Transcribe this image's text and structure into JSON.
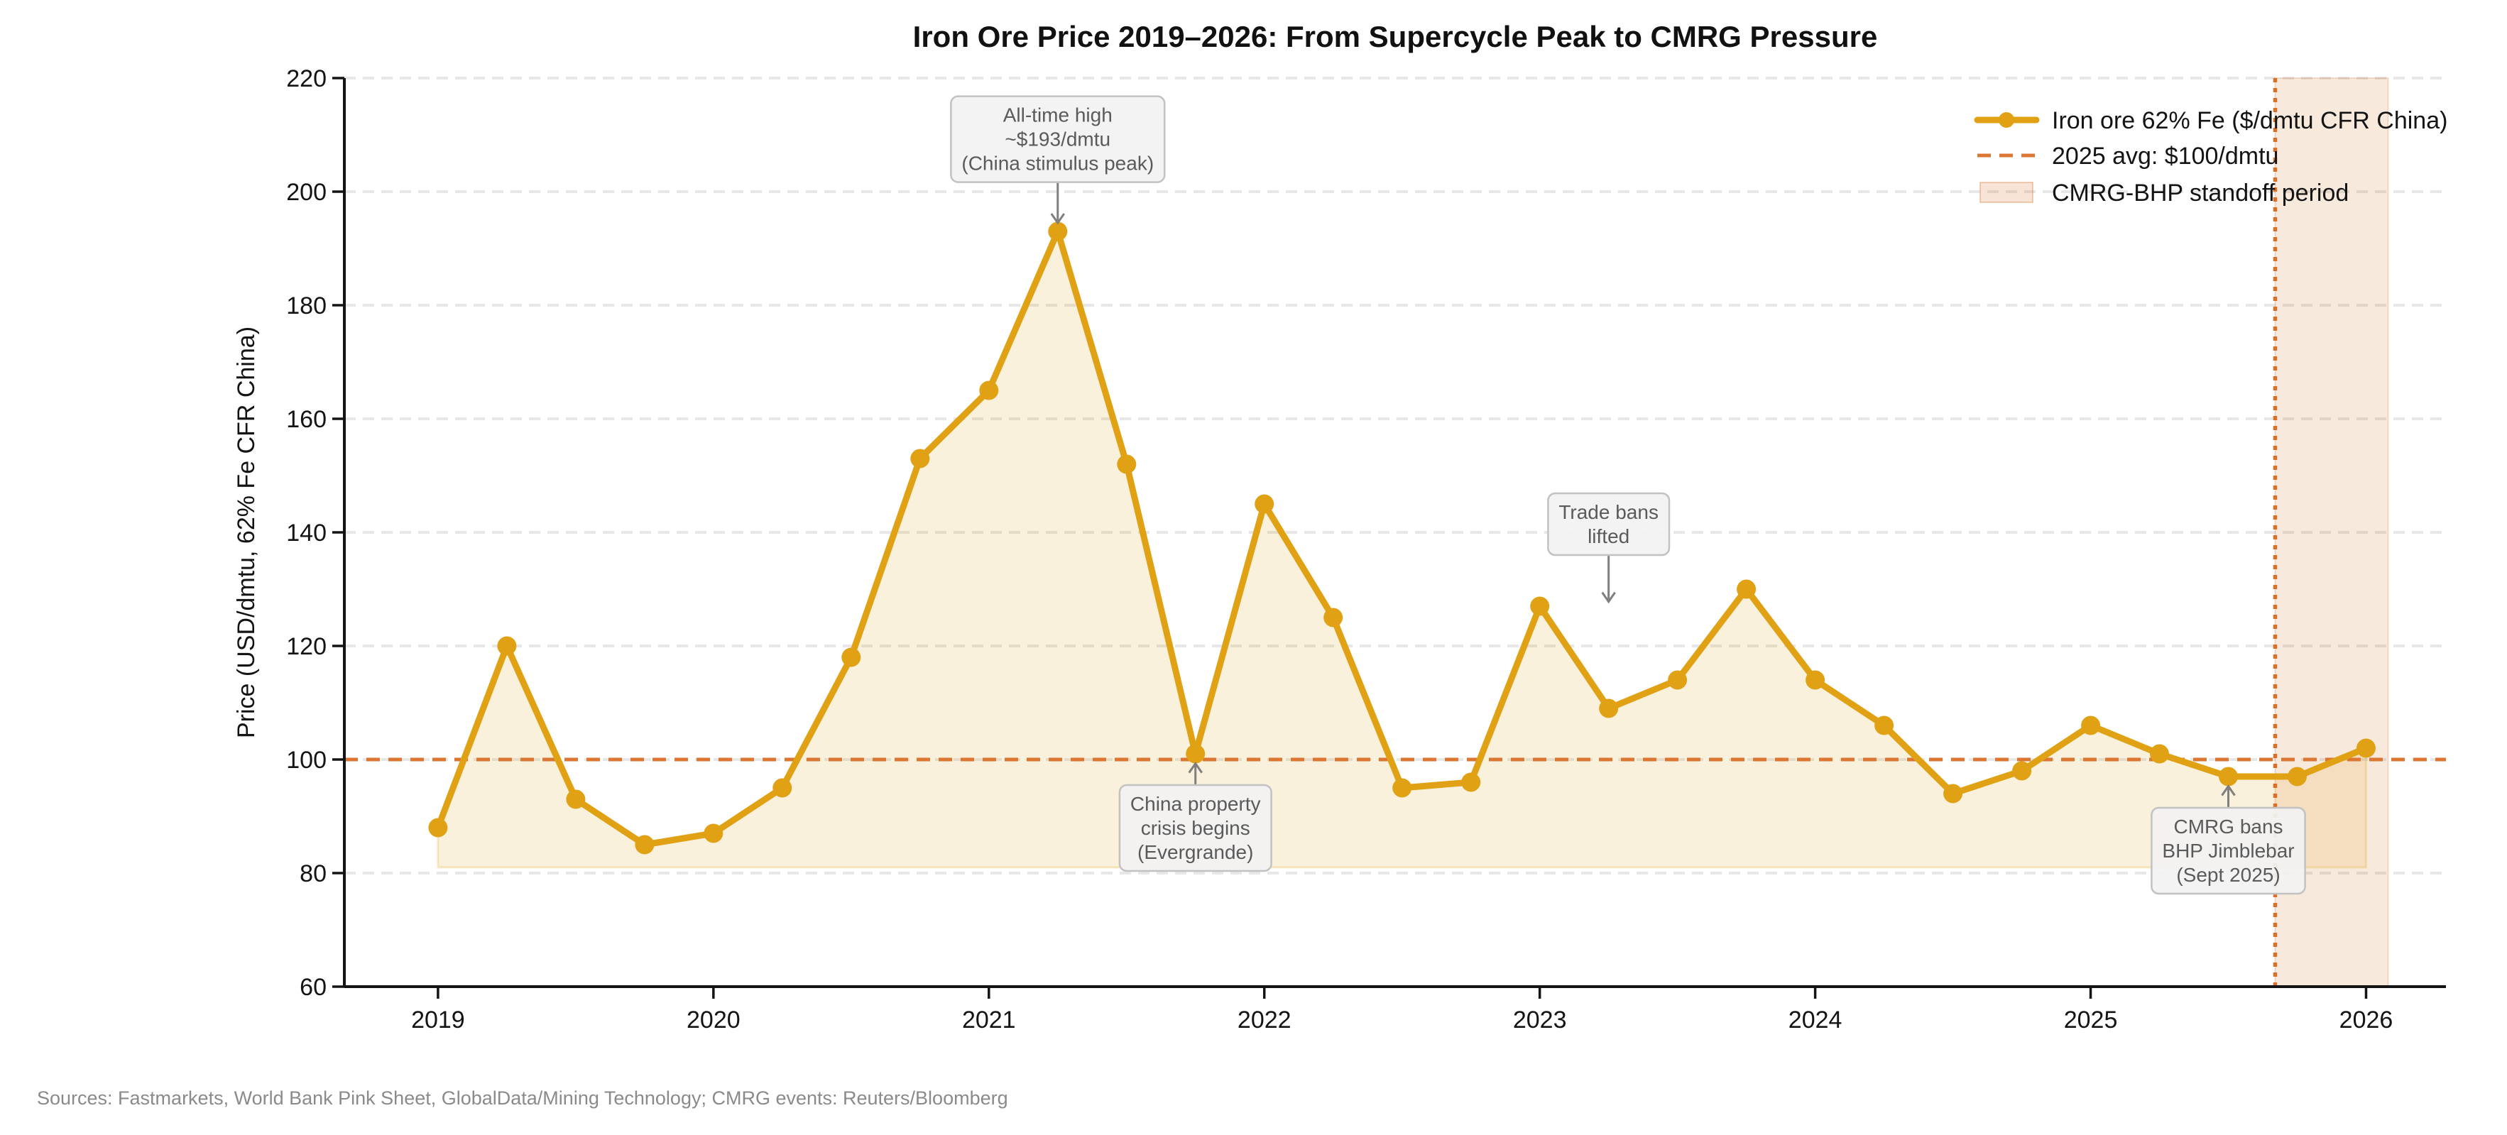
{
  "footer": "Sources: Fastmarkets, World Bank Pink Sheet, GlobalData/Mining Technology; CMRG events: Reuters/Bloomberg",
  "chart_data": {
    "type": "line",
    "title": "Iron Ore Price 2019–2026: From Supercycle Peak to CMRG Pressure",
    "xlabel": "",
    "ylabel": "Price (USD/dmtu, 62% Fe CFR China)",
    "xlim": [
      2018.66,
      2026.29
    ],
    "ylim": [
      60,
      220
    ],
    "xticks": [
      2019,
      2020,
      2021,
      2022,
      2023,
      2024,
      2025,
      2026
    ],
    "yticks": [
      60,
      80,
      100,
      120,
      140,
      160,
      180,
      200,
      220
    ],
    "grid": "horizontal-dashed",
    "x": [
      2019.0,
      2019.25,
      2019.5,
      2019.75,
      2020.0,
      2020.25,
      2020.5,
      2020.75,
      2021.0,
      2021.25,
      2021.5,
      2021.75,
      2022.0,
      2022.25,
      2022.5,
      2022.75,
      2023.0,
      2023.25,
      2023.5,
      2023.75,
      2024.0,
      2024.25,
      2024.5,
      2024.75,
      2025.0,
      2025.25,
      2025.5,
      2025.75,
      2026.0
    ],
    "series": [
      {
        "name": "Iron ore 62% Fe ($/dmtu CFR China)",
        "values": [
          88,
          120,
          93,
          85,
          87,
          95,
          118,
          153,
          165,
          193,
          152,
          101,
          145,
          125,
          95,
          96,
          127,
          109,
          114,
          130,
          114,
          106,
          94,
          98,
          106,
          101,
          97,
          97,
          102
        ]
      }
    ],
    "area_baseline": 81,
    "avg_line": {
      "value": 100,
      "label": "2025 avg: $100/dmtu"
    },
    "band": {
      "x0": 2025.67,
      "x1": 2026.08,
      "label": "CMRG-BHP standoff period"
    },
    "legend": {
      "position": "upper right",
      "entries": [
        {
          "type": "line-marker",
          "label": "Iron ore 62% Fe ($/dmtu CFR China)"
        },
        {
          "type": "dashed-line",
          "label": "2025 avg: $100/dmtu"
        },
        {
          "type": "patch",
          "label": "CMRG-BHP standoff period"
        }
      ]
    },
    "annotations": [
      {
        "lines": [
          "All-time high",
          "~$193/dmtu",
          "(China stimulus peak)"
        ],
        "target_x": 2021.25,
        "target_y": 194.5,
        "box_x": 2021.25,
        "box_y": 209.3
      },
      {
        "lines": [
          "China property",
          "crisis begins",
          "(Evergrande)"
        ],
        "target_x": 2021.75,
        "target_y": 99.3,
        "box_x": 2021.75,
        "box_y": 88.0
      },
      {
        "lines": [
          "Trade bans",
          "lifted"
        ],
        "target_x": 2023.25,
        "target_y": 127.8,
        "box_x": 2023.25,
        "box_y": 141.5
      },
      {
        "lines": [
          "CMRG bans",
          "BHP Jimblebar",
          "(Sept 2025)"
        ],
        "target_x": 2025.5,
        "target_y": 95.3,
        "box_x": 2025.5,
        "box_y": 84.0
      }
    ]
  },
  "colors": {
    "line": "#E0A214",
    "avg_line": "#DC7633",
    "vline": "#D96F28",
    "band": "#D2691E",
    "grid": "#E7E7E7",
    "axis": "#141414",
    "title": "#111111",
    "footer": "#8A8A8A",
    "annotation_bg": "#F2F2F2",
    "annotation_border": "#C2C2C2",
    "annotation_text": "#5A5A5A",
    "arrow": "#7F7F7F"
  }
}
